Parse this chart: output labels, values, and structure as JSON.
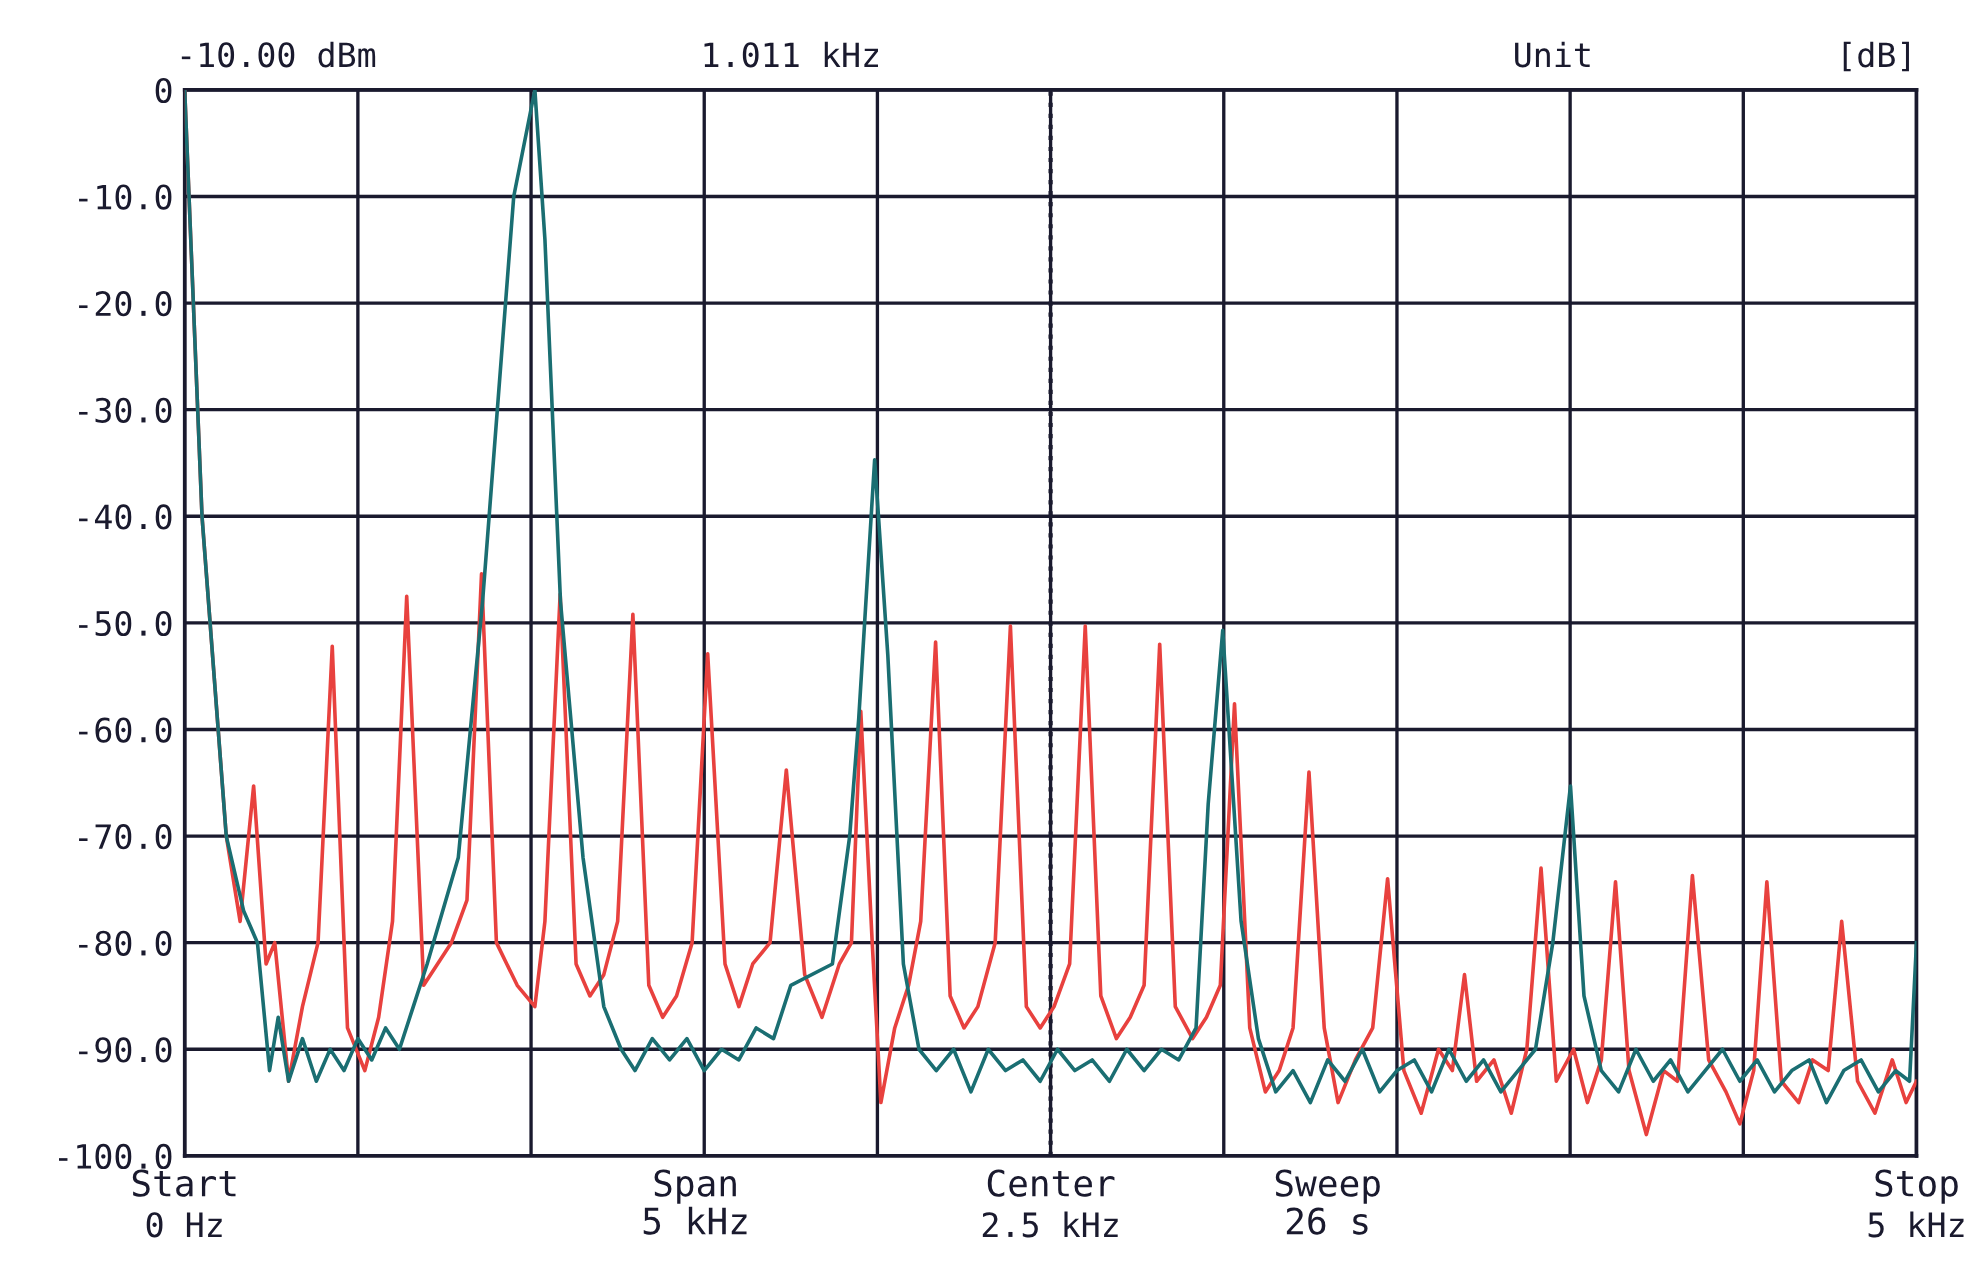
{
  "chart_data": {
    "type": "line",
    "ylabel": "[dB]",
    "annotations": [
      "-10.00 dBm",
      "1.011 kHz",
      "Unit",
      "Start",
      "Span\n5 kHz",
      "Center",
      "Sweep\n26 s",
      "Stop"
    ],
    "xlim": [
      0,
      5
    ],
    "ylim": [
      -100,
      0
    ],
    "xticks": [
      {
        "value": 0,
        "label": "0 Hz"
      },
      {
        "value": 0.5,
        "label": null
      },
      {
        "value": 1,
        "label": null
      },
      {
        "value": 1.5,
        "label": null
      },
      {
        "value": 2,
        "label": null
      },
      {
        "value": 2.5,
        "label": "2.5 kHz"
      },
      {
        "value": 3,
        "label": null
      },
      {
        "value": 3.5,
        "label": null
      },
      {
        "value": 4,
        "label": null
      },
      {
        "value": 4.5,
        "label": null
      },
      {
        "value": 5,
        "label": "5 kHz"
      }
    ],
    "yticks": [
      0,
      {
        "value": -10,
        "label": "-10.0"
      },
      {
        "value": -20,
        "label": "-20.0"
      },
      {
        "value": -30,
        "label": "-30.0"
      },
      {
        "value": -40,
        "label": "-40.0"
      },
      {
        "value": -50,
        "label": "-50.0"
      },
      {
        "value": -60,
        "label": "-60.0"
      },
      {
        "value": -70,
        "label": "-70.0"
      },
      {
        "value": -80,
        "label": "-80.0"
      },
      {
        "value": -90,
        "label": "-90.0"
      },
      {
        "value": -100,
        "label": "-100.0"
      }
    ],
    "grid": true,
    "marker": "none",
    "line_style": "solid",
    "ref_lines": [
      {
        "axis": "x",
        "value": 2.5,
        "label": null,
        "color": "#1a1a2e",
        "line_style": "dotted"
      }
    ],
    "series": [
      {
        "color": "#e8413e",
        "x": [
          0,
          0.05,
          0.12,
          0.16,
          0.199,
          0.235,
          0.26,
          0.3,
          0.34,
          0.385,
          0.426,
          0.47,
          0.52,
          0.56,
          0.6,
          0.641,
          0.69,
          0.73,
          0.77,
          0.815,
          0.857,
          0.9,
          0.96,
          1.011,
          1.04,
          1.084,
          1.13,
          1.17,
          1.21,
          1.25,
          1.294,
          1.34,
          1.38,
          1.42,
          1.465,
          1.51,
          1.56,
          1.6,
          1.64,
          1.69,
          1.737,
          1.79,
          1.84,
          1.89,
          1.925,
          1.952,
          1.985,
          2.01,
          2.05,
          2.09,
          2.125,
          2.168,
          2.21,
          2.25,
          2.29,
          2.34,
          2.384,
          2.43,
          2.47,
          2.51,
          2.555,
          2.6,
          2.645,
          2.69,
          2.73,
          2.77,
          2.815,
          2.86,
          2.91,
          2.95,
          2.99,
          3.031,
          3.075,
          3.12,
          3.16,
          3.2,
          3.246,
          3.29,
          3.33,
          3.38,
          3.43,
          3.473,
          3.52,
          3.57,
          3.62,
          3.66,
          3.695,
          3.73,
          3.78,
          3.83,
          3.875,
          3.916,
          3.96,
          4.01,
          4.05,
          4.09,
          4.131,
          4.17,
          4.22,
          4.27,
          4.31,
          4.353,
          4.4,
          4.45,
          4.49,
          4.53,
          4.568,
          4.61,
          4.66,
          4.7,
          4.745,
          4.784,
          4.83,
          4.88,
          4.93,
          4.97,
          5
        ],
        "values": [
          0,
          -40,
          -70,
          -78,
          -65.3,
          -82,
          -80,
          -93,
          -86,
          -80,
          -52.2,
          -88,
          -92,
          -87,
          -78,
          -47.5,
          -84,
          -82,
          -80,
          -76,
          -45.4,
          -80,
          -84,
          -86,
          -78,
          -47.3,
          -82,
          -85,
          -83,
          -78,
          -49.2,
          -84,
          -87,
          -85,
          -80,
          -52.9,
          -82,
          -86,
          -82,
          -80,
          -63.8,
          -83,
          -87,
          -82,
          -80,
          -58.3,
          -80,
          -95,
          -88,
          -84,
          -78,
          -51.8,
          -85,
          -88,
          -86,
          -80,
          -50.3,
          -86,
          -88,
          -86,
          -82,
          -50.3,
          -85,
          -89,
          -87,
          -84,
          -52,
          -86,
          -89,
          -87,
          -84,
          -57.6,
          -88,
          -94,
          -92,
          -88,
          -64,
          -88,
          -95,
          -91,
          -88,
          -74,
          -92,
          -96,
          -90,
          -92,
          -83,
          -93,
          -91,
          -96,
          -90,
          -73,
          -93,
          -90,
          -95,
          -91,
          -74.3,
          -92,
          -98,
          -92,
          -93,
          -73.7,
          -91,
          -94,
          -97,
          -92,
          -74.3,
          -93,
          -95,
          -91,
          -92,
          -78,
          -93,
          -96,
          -91,
          -95,
          -93
        ]
      },
      {
        "color": "#1a6e72",
        "x": [
          0,
          0.05,
          0.12,
          0.17,
          0.21,
          0.245,
          0.27,
          0.3,
          0.34,
          0.38,
          0.42,
          0.46,
          0.5,
          0.54,
          0.58,
          0.62,
          0.66,
          0.7,
          0.79,
          0.86,
          0.95,
          1.011,
          1.04,
          1.085,
          1.15,
          1.21,
          1.26,
          1.3,
          1.35,
          1.4,
          1.45,
          1.5,
          1.55,
          1.6,
          1.65,
          1.7,
          1.75,
          1.87,
          1.92,
          1.946,
          1.992,
          2.03,
          2.075,
          2.12,
          2.17,
          2.22,
          2.27,
          2.32,
          2.37,
          2.42,
          2.47,
          2.52,
          2.57,
          2.62,
          2.67,
          2.72,
          2.77,
          2.82,
          2.87,
          2.92,
          2.955,
          2.997,
          3.05,
          3.1,
          3.15,
          3.2,
          3.25,
          3.3,
          3.35,
          3.4,
          3.45,
          3.5,
          3.55,
          3.6,
          3.65,
          3.7,
          3.75,
          3.8,
          3.85,
          3.9,
          3.95,
          4.001,
          4.04,
          4.09,
          4.14,
          4.19,
          4.24,
          4.29,
          4.34,
          4.39,
          4.44,
          4.49,
          4.54,
          4.59,
          4.64,
          4.69,
          4.74,
          4.79,
          4.84,
          4.89,
          4.94,
          4.98,
          5
        ],
        "values": [
          0,
          -40,
          -70,
          -77,
          -80,
          -92,
          -87,
          -93,
          -89,
          -93,
          -90,
          -92,
          -89,
          -91,
          -88,
          -90,
          -86,
          -82,
          -72,
          -48,
          -10,
          0,
          -14,
          -48,
          -72,
          -86,
          -90,
          -92,
          -89,
          -91,
          -89,
          -92,
          -90,
          -91,
          -88,
          -89,
          -84,
          -82,
          -70,
          -59,
          -34.7,
          -53,
          -82,
          -90,
          -92,
          -90,
          -94,
          -90,
          -92,
          -91,
          -93,
          -90,
          -92,
          -91,
          -93,
          -90,
          -92,
          -90,
          -91,
          -88,
          -67,
          -50.7,
          -78,
          -89,
          -94,
          -92,
          -95,
          -91,
          -93,
          -90,
          -94,
          -92,
          -91,
          -94,
          -90,
          -93,
          -91,
          -94,
          -92,
          -90,
          -80,
          -65.3,
          -85,
          -92,
          -94,
          -90,
          -93,
          -91,
          -94,
          -92,
          -90,
          -93,
          -91,
          -94,
          -92,
          -91,
          -95,
          -92,
          -91,
          -94,
          -92,
          -93,
          -80
        ]
      }
    ]
  }
}
